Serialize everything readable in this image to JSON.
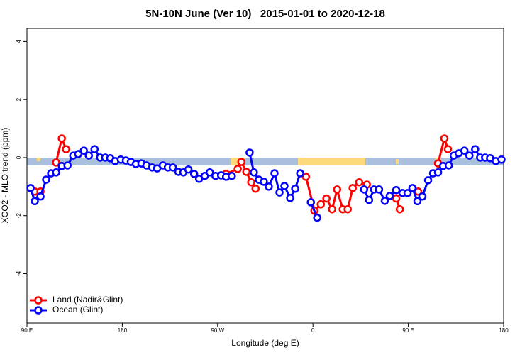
{
  "chart_data": {
    "type": "line",
    "title": "5N-10N June (Ver 10)   2015-01-01 to 2020-12-18",
    "xlabel": "Longitude (deg E)",
    "ylabel": "XCO2 - MLO trend (ppm)",
    "xlim": [
      90,
      540
    ],
    "xticks": [
      {
        "value": 90,
        "label": "90 E"
      },
      180,
      {
        "value": 270,
        "label": "90 W"
      },
      {
        "value": 360,
        "label": "0"
      },
      {
        "value": 450,
        "label": "90 E"
      },
      {
        "value": 540,
        "label": "180"
      }
    ],
    "ylim": [
      -5.7,
      4.45
    ],
    "yticks": [
      -4,
      -2,
      0,
      2,
      4
    ],
    "legend": "bottom-left",
    "series": [
      {
        "name": "Land (Nadir&Glint)",
        "color": "#ff0000",
        "x": [
          97.4,
          102.8,
          null,
          117.5,
          122.9,
          126.9,
          null,
          278,
          289,
          292.4,
          297.1,
          301.7,
          305.8,
          null,
          353.4,
          361.4,
          367.4,
          372.7,
          378.1,
          382.8,
          388.1,
          392.8,
          397.5,
          403.6,
          410.9,
          null,
          438.6,
          442,
          null,
          459.3,
          null,
          478.1,
          484.1,
          487.4
        ],
        "values": [
          -1.17,
          -1.17,
          null,
          -0.17,
          0.66,
          0.29,
          null,
          -0.56,
          -0.39,
          -0.15,
          -0.49,
          -0.85,
          -1.07,
          null,
          -0.66,
          -1.83,
          -1.61,
          -1.41,
          -1.78,
          -1.1,
          -1.78,
          -1.78,
          -1.05,
          -0.85,
          -0.93,
          null,
          -1.41,
          -1.78,
          null,
          -1.17,
          null,
          -0.2,
          0.66,
          0.29
        ]
      },
      {
        "name": "Ocean (Glint)",
        "color": "#0000ff",
        "x": [
          93.4,
          97.4,
          102.8,
          108.1,
          112.8,
          117.5,
          122.9,
          128.3,
          133.7,
          138.4,
          143.7,
          148.4,
          153.8,
          159.1,
          163.9,
          168.6,
          173.3,
          178.6,
          183.4,
          188.1,
          192.8,
          198.1,
          202.8,
          208.2,
          212.9,
          218.3,
          223,
          227.7,
          233,
          237.7,
          242.4,
          247.8,
          252.5,
          257.9,
          262.6,
          268,
          273.3,
          278,
          283.4,
          null,
          300.2,
          304.2,
          308.9,
          313.6,
          318.3,
          323.7,
          328.4,
          333.1,
          338.5,
          343.2,
          347.9,
          null,
          358,
          364,
          null,
          408.3,
          413,
          417.7,
          422.4,
          427.8,
          432.5,
          438.6,
          444.6,
          449.3,
          453.9,
          458.6,
          463.3,
          468.7,
          473.4,
          478.1,
          482.8,
          488.2,
          492.9,
          497.6,
          503,
          507.7,
          513.1,
          517.8,
          522.5,
          527.2,
          532.6,
          538
        ],
        "values": [
          -1.05,
          -1.5,
          -1.34,
          -0.76,
          -0.54,
          -0.51,
          -0.29,
          -0.27,
          0.07,
          0.12,
          0.24,
          0.07,
          0.29,
          0,
          0,
          -0.02,
          -0.12,
          -0.07,
          -0.1,
          -0.15,
          -0.22,
          -0.2,
          -0.27,
          -0.34,
          -0.37,
          -0.27,
          -0.34,
          -0.34,
          -0.49,
          -0.51,
          -0.41,
          -0.56,
          -0.73,
          -0.63,
          -0.51,
          -0.63,
          -0.61,
          -0.66,
          -0.63,
          null,
          0.17,
          -0.51,
          -0.76,
          -0.83,
          -1,
          -0.54,
          -1.2,
          -0.98,
          -1.39,
          -1.07,
          -0.54,
          null,
          -1.54,
          -2.07,
          null,
          -1.1,
          -1.46,
          -1.1,
          -1.1,
          -1.49,
          -1.32,
          -1.12,
          -1.22,
          -1.22,
          -1.05,
          -1.5,
          -1.34,
          -0.78,
          -0.54,
          -0.51,
          -0.29,
          -0.27,
          0.07,
          0.15,
          0.24,
          0.07,
          0.29,
          0,
          0,
          -0.02,
          -0.12,
          -0.07
        ]
      }
    ]
  }
}
